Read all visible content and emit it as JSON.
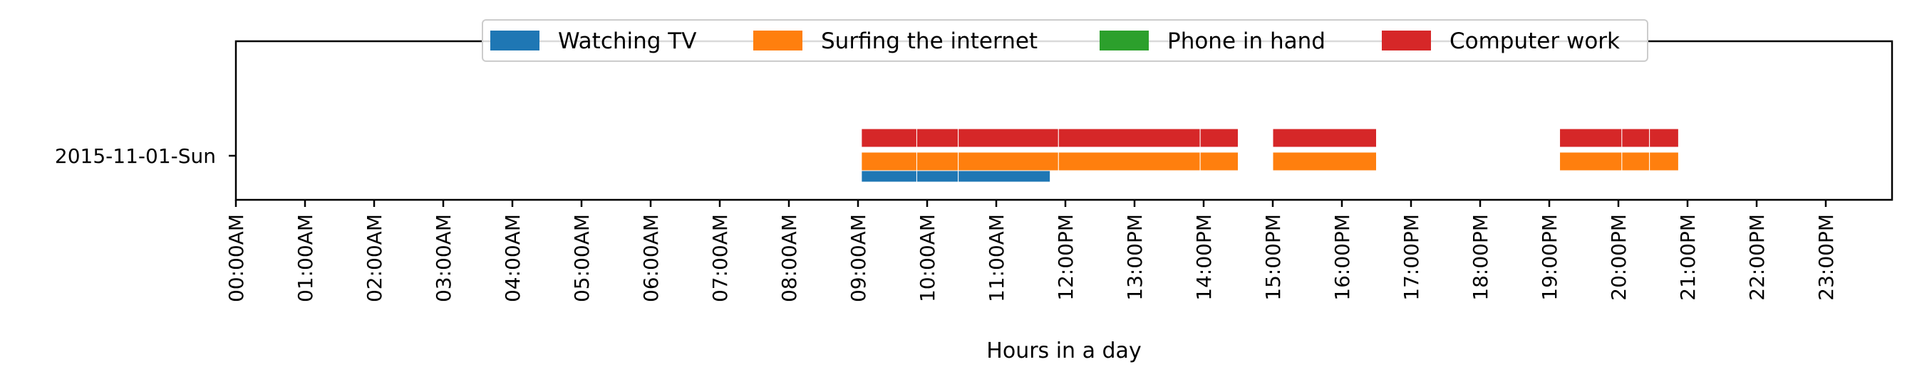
{
  "chart_data": {
    "type": "timeline",
    "xlabel": "Hours in a day",
    "ylabel": "",
    "title": "",
    "xlim": [
      0,
      24
    ],
    "x_ticks": [
      "00:00AM",
      "01:00AM",
      "02:00AM",
      "03:00AM",
      "04:00AM",
      "05:00AM",
      "06:00AM",
      "07:00AM",
      "08:00AM",
      "09:00AM",
      "10:00AM",
      "11:00AM",
      "12:00PM",
      "13:00PM",
      "14:00PM",
      "15:00PM",
      "16:00PM",
      "17:00PM",
      "18:00PM",
      "19:00PM",
      "20:00PM",
      "21:00PM",
      "22:00PM",
      "23:00PM"
    ],
    "categories": [
      "2015-11-01-Sun"
    ],
    "grid": false,
    "legend_position": "top-center",
    "series": [
      {
        "name": "Watching TV",
        "color": "#1f77b4",
        "intervals": [
          [
            9.05,
            9.85
          ],
          [
            9.85,
            10.45
          ],
          [
            10.45,
            11.78
          ]
        ]
      },
      {
        "name": "Surfing the internet",
        "color": "#ff7f0e",
        "intervals": [
          [
            9.05,
            9.85
          ],
          [
            9.85,
            10.45
          ],
          [
            10.45,
            11.9
          ],
          [
            11.9,
            13.95
          ],
          [
            13.95,
            14.5
          ],
          [
            15.0,
            16.5
          ],
          [
            19.15,
            20.05
          ],
          [
            20.05,
            20.45
          ],
          [
            20.45,
            20.87
          ]
        ]
      },
      {
        "name": "Phone in hand",
        "color": "#2ca02c",
        "intervals": []
      },
      {
        "name": "Computer work",
        "color": "#d62728",
        "intervals": [
          [
            9.05,
            9.85
          ],
          [
            9.85,
            10.45
          ],
          [
            10.45,
            11.9
          ],
          [
            11.9,
            13.95
          ],
          [
            13.95,
            14.5
          ],
          [
            15.0,
            16.5
          ],
          [
            19.15,
            20.05
          ],
          [
            20.05,
            20.45
          ],
          [
            20.45,
            20.87
          ]
        ]
      }
    ]
  }
}
